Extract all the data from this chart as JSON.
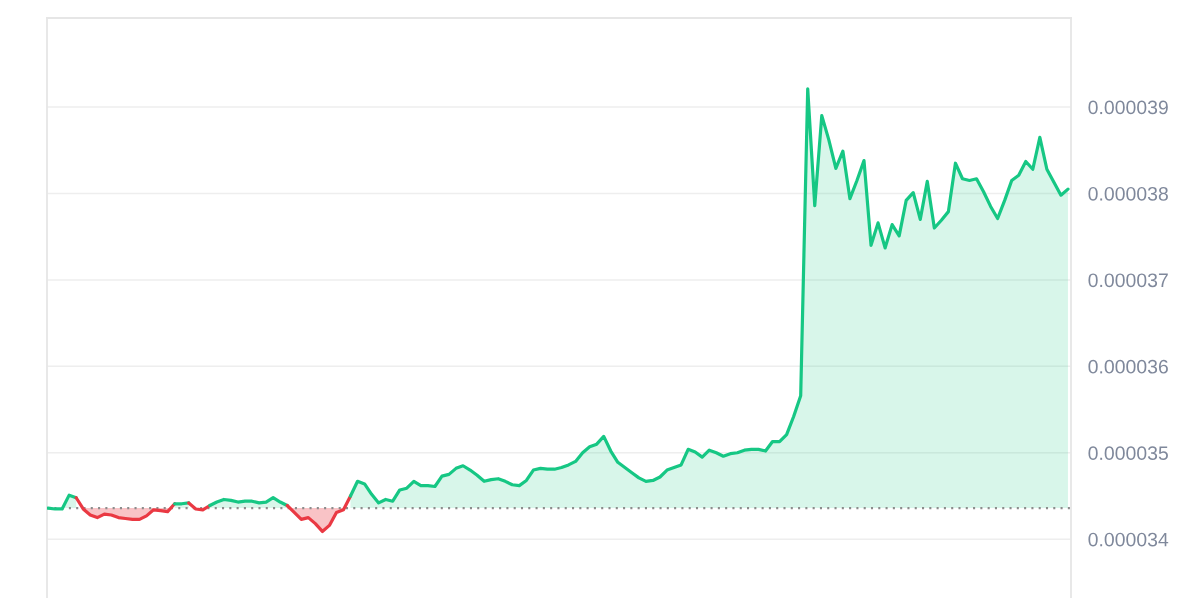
{
  "chart_data": {
    "type": "area",
    "categories": [
      null,
      null,
      null,
      null,
      null,
      null,
      null,
      null,
      null,
      null,
      null,
      null,
      null,
      null,
      null,
      null,
      null,
      null,
      null,
      null,
      null,
      null,
      null,
      null,
      null,
      null,
      null,
      null,
      null,
      null,
      null,
      null,
      null,
      null,
      null,
      null,
      null,
      null,
      null,
      null,
      null,
      null,
      null,
      null,
      null,
      null,
      null,
      null,
      null,
      null,
      null,
      null,
      null,
      null,
      null,
      null,
      null,
      null,
      null,
      null,
      null,
      null,
      null,
      null,
      null,
      null,
      null,
      null,
      null,
      null,
      null,
      null,
      null,
      null,
      null,
      null,
      null,
      null,
      null,
      null,
      null,
      null,
      null,
      null,
      null,
      null,
      null,
      null,
      null,
      null,
      null,
      null,
      null,
      null,
      null,
      null,
      null,
      null,
      null,
      null,
      null,
      null,
      null,
      null,
      null,
      null,
      null,
      null,
      null,
      null,
      null,
      null,
      null,
      null,
      null,
      null,
      null,
      null,
      null,
      null,
      null,
      null,
      null,
      null,
      null,
      null,
      null,
      null,
      null,
      null,
      null,
      null,
      null,
      null,
      null,
      null,
      null,
      null,
      null,
      null,
      null,
      null,
      null,
      null,
      null,
      null
    ],
    "series": [
      {
        "color": "#16c784",
        "values": [
          3.436e-05,
          3.435e-05,
          3.435e-05,
          3.451e-05,
          3.448e-05,
          null,
          null,
          null,
          null,
          null,
          null,
          null,
          null,
          null,
          null,
          null,
          null,
          null,
          null,
          null,
          null,
          null,
          null,
          null,
          null,
          null,
          null,
          null,
          null,
          null,
          null,
          null,
          null,
          null,
          null,
          null,
          null,
          null,
          null,
          null,
          null,
          null,
          null,
          null,
          null,
          null,
          null,
          null,
          null,
          null,
          null,
          null,
          null,
          null,
          null,
          null,
          null,
          null,
          null,
          null,
          null,
          null,
          null,
          null,
          null,
          null,
          null,
          null,
          null,
          null,
          null,
          null,
          null,
          null,
          null,
          null,
          null,
          null,
          null,
          null,
          null,
          null,
          null,
          null,
          null,
          null,
          null,
          null,
          null,
          null,
          null,
          null,
          null,
          null,
          null,
          null,
          null,
          null,
          null,
          null,
          null,
          null,
          null,
          null,
          null,
          null,
          null,
          null,
          null,
          null,
          null,
          null,
          null,
          null,
          null,
          null,
          null,
          null,
          null,
          null,
          null,
          null,
          null,
          null,
          null,
          null,
          null,
          null,
          null,
          null,
          null,
          null,
          null,
          null,
          null,
          null,
          null,
          null,
          null,
          null,
          null,
          null,
          null,
          null,
          null,
          null
        ]
      },
      {
        "type": "line",
        "color": "#ea3943",
        "values": [
          null,
          null,
          null,
          null,
          3.448e-05,
          3.435e-05,
          3.428e-05,
          3.425e-05,
          3.429e-05,
          3.428e-05,
          3.425e-05,
          3.424e-05,
          3.423e-05,
          3.423e-05,
          3.427e-05,
          3.434e-05,
          3.433e-05,
          3.432e-05,
          3.441e-05,
          null,
          null,
          null,
          null,
          null,
          null,
          null,
          null,
          null,
          null,
          null,
          null,
          null,
          null,
          null,
          null,
          null,
          null,
          null,
          null,
          null,
          null,
          null,
          null,
          null,
          null,
          null,
          null,
          null,
          null,
          null,
          null,
          null,
          null,
          null,
          null,
          null,
          null,
          null,
          null,
          null,
          null,
          null,
          null,
          null,
          null,
          null,
          null,
          null,
          null,
          null,
          null,
          null,
          null,
          null,
          null,
          null,
          null,
          null,
          null,
          null,
          null,
          null,
          null,
          null,
          null,
          null,
          null,
          null,
          null,
          null,
          null,
          null,
          null,
          null,
          null,
          null,
          null,
          null,
          null,
          null,
          null,
          null,
          null,
          null,
          null,
          null,
          null,
          null,
          null,
          null,
          null,
          null,
          null,
          null,
          null,
          null,
          null,
          null,
          null,
          null,
          null,
          null,
          null,
          null,
          null,
          null,
          null,
          null,
          null,
          null,
          null,
          null,
          null,
          null,
          null,
          null,
          null,
          null,
          null,
          null,
          null,
          null,
          null,
          null,
          null,
          null
        ]
      },
      {
        "color": "#16c784",
        "values": [
          null,
          null,
          null,
          null,
          null,
          null,
          null,
          null,
          null,
          null,
          null,
          null,
          null,
          null,
          null,
          null,
          null,
          null,
          3.441e-05,
          3.441e-05,
          3.442e-05,
          null,
          null,
          null,
          null,
          null,
          null,
          null,
          null,
          null,
          null,
          null,
          null,
          null,
          null,
          null,
          null,
          null,
          null,
          null,
          null,
          null,
          null,
          null,
          null,
          null,
          null,
          null,
          null,
          null,
          null,
          null,
          null,
          null,
          null,
          null,
          null,
          null,
          null,
          null,
          null,
          null,
          null,
          null,
          null,
          null,
          null,
          null,
          null,
          null,
          null,
          null,
          null,
          null,
          null,
          null,
          null,
          null,
          null,
          null,
          null,
          null,
          null,
          null,
          null,
          null,
          null,
          null,
          null,
          null,
          null,
          null,
          null,
          null,
          null,
          null,
          null,
          null,
          null,
          null,
          null,
          null,
          null,
          null,
          null,
          null,
          null,
          null,
          null,
          null,
          null,
          null,
          null,
          null,
          null,
          null,
          null,
          null,
          null,
          null,
          null,
          null,
          null,
          null,
          null,
          null,
          null,
          null,
          null,
          null,
          null,
          null,
          null,
          null,
          null,
          null,
          null,
          null,
          null,
          null,
          null,
          null,
          null,
          null,
          null,
          null
        ]
      },
      {
        "type": "line",
        "color": "#ea3943",
        "values": [
          null,
          null,
          null,
          null,
          null,
          null,
          null,
          null,
          null,
          null,
          null,
          null,
          null,
          null,
          null,
          null,
          null,
          null,
          null,
          null,
          3.442e-05,
          3.435e-05,
          3.434e-05,
          3.439e-05,
          null,
          null,
          null,
          null,
          null,
          null,
          null,
          null,
          null,
          null,
          null,
          null,
          null,
          null,
          null,
          null,
          null,
          null,
          null,
          null,
          null,
          null,
          null,
          null,
          null,
          null,
          null,
          null,
          null,
          null,
          null,
          null,
          null,
          null,
          null,
          null,
          null,
          null,
          null,
          null,
          null,
          null,
          null,
          null,
          null,
          null,
          null,
          null,
          null,
          null,
          null,
          null,
          null,
          null,
          null,
          null,
          null,
          null,
          null,
          null,
          null,
          null,
          null,
          null,
          null,
          null,
          null,
          null,
          null,
          null,
          null,
          null,
          null,
          null,
          null,
          null,
          null,
          null,
          null,
          null,
          null,
          null,
          null,
          null,
          null,
          null,
          null,
          null,
          null,
          null,
          null,
          null,
          null,
          null,
          null,
          null,
          null,
          null,
          null,
          null,
          null,
          null,
          null,
          null,
          null,
          null,
          null,
          null,
          null,
          null,
          null,
          null,
          null,
          null,
          null,
          null,
          null,
          null,
          null,
          null,
          null,
          null
        ]
      },
      {
        "color": "#16c784",
        "values": [
          null,
          null,
          null,
          null,
          null,
          null,
          null,
          null,
          null,
          null,
          null,
          null,
          null,
          null,
          null,
          null,
          null,
          null,
          null,
          null,
          null,
          null,
          null,
          3.439e-05,
          3.443e-05,
          3.446e-05,
          3.445e-05,
          3.443e-05,
          3.444e-05,
          3.444e-05,
          3.442e-05,
          3.443e-05,
          3.448e-05,
          3.443e-05,
          3.439e-05,
          null,
          null,
          null,
          null,
          null,
          null,
          null,
          null,
          null,
          null,
          null,
          null,
          null,
          null,
          null,
          null,
          null,
          null,
          null,
          null,
          null,
          null,
          null,
          null,
          null,
          null,
          null,
          null,
          null,
          null,
          null,
          null,
          null,
          null,
          null,
          null,
          null,
          null,
          null,
          null,
          null,
          null,
          null,
          null,
          null,
          null,
          null,
          null,
          null,
          null,
          null,
          null,
          null,
          null,
          null,
          null,
          null,
          null,
          null,
          null,
          null,
          null,
          null,
          null,
          null,
          null,
          null,
          null,
          null,
          null,
          null,
          null,
          null,
          null,
          null,
          null,
          null,
          null,
          null,
          null,
          null,
          null,
          null,
          null,
          null,
          null,
          null,
          null,
          null,
          null,
          null,
          null,
          null,
          null,
          null,
          null,
          null,
          null,
          null,
          null,
          null,
          null,
          null,
          null,
          null,
          null,
          null,
          null,
          null,
          null,
          null
        ]
      },
      {
        "type": "line",
        "color": "#ea3943",
        "values": [
          null,
          null,
          null,
          null,
          null,
          null,
          null,
          null,
          null,
          null,
          null,
          null,
          null,
          null,
          null,
          null,
          null,
          null,
          null,
          null,
          null,
          null,
          null,
          null,
          null,
          null,
          null,
          null,
          null,
          null,
          null,
          null,
          null,
          null,
          3.439e-05,
          3.431e-05,
          3.423e-05,
          3.425e-05,
          3.418e-05,
          3.409e-05,
          3.416e-05,
          3.431e-05,
          3.434e-05,
          3.45e-05,
          null,
          null,
          null,
          null,
          null,
          null,
          null,
          null,
          null,
          null,
          null,
          null,
          null,
          null,
          null,
          null,
          null,
          null,
          null,
          null,
          null,
          null,
          null,
          null,
          null,
          null,
          null,
          null,
          null,
          null,
          null,
          null,
          null,
          null,
          null,
          null,
          null,
          null,
          null,
          null,
          null,
          null,
          null,
          null,
          null,
          null,
          null,
          null,
          null,
          null,
          null,
          null,
          null,
          null,
          null,
          null,
          null,
          null,
          null,
          null,
          null,
          null,
          null,
          null,
          null,
          null,
          null,
          null,
          null,
          null,
          null,
          null,
          null,
          null,
          null,
          null,
          null,
          null,
          null,
          null,
          null,
          null,
          null,
          null,
          null,
          null,
          null,
          null,
          null,
          null,
          null,
          null,
          null,
          null,
          null,
          null,
          null,
          null,
          null,
          null,
          null,
          null
        ]
      },
      {
        "color": "#16c784",
        "values": [
          null,
          null,
          null,
          null,
          null,
          null,
          null,
          null,
          null,
          null,
          null,
          null,
          null,
          null,
          null,
          null,
          null,
          null,
          null,
          null,
          null,
          null,
          null,
          null,
          null,
          null,
          null,
          null,
          null,
          null,
          null,
          null,
          null,
          null,
          null,
          null,
          null,
          null,
          null,
          null,
          null,
          null,
          null,
          3.45e-05,
          3.467e-05,
          3.464e-05,
          3.452e-05,
          3.442e-05,
          3.446e-05,
          3.444e-05,
          3.457e-05,
          3.459e-05,
          3.467e-05,
          3.462e-05,
          3.462e-05,
          3.461e-05,
          3.473e-05,
          3.475e-05,
          3.482e-05,
          3.485e-05,
          3.48e-05,
          3.474e-05,
          3.467e-05,
          3.469e-05,
          3.47e-05,
          3.467e-05,
          3.463e-05,
          3.462e-05,
          3.468e-05,
          3.48e-05,
          3.482e-05,
          3.481e-05,
          3.481e-05,
          3.483e-05,
          3.486e-05,
          3.49e-05,
          3.5e-05,
          3.507e-05,
          3.51e-05,
          3.519e-05,
          3.502e-05,
          3.489e-05,
          3.483e-05,
          3.477e-05,
          3.471e-05,
          3.467e-05,
          3.468e-05,
          3.472e-05,
          3.48e-05,
          3.483e-05,
          3.486e-05,
          3.504e-05,
          3.501e-05,
          3.495e-05,
          3.503e-05,
          3.5e-05,
          3.496e-05,
          3.499e-05,
          3.5e-05,
          3.503e-05,
          3.504e-05,
          3.504e-05,
          3.502e-05,
          3.513e-05,
          3.513e-05,
          3.521e-05,
          3.542e-05,
          3.566e-05,
          3.921e-05,
          3.786e-05,
          3.89e-05,
          3.862e-05,
          3.829e-05,
          3.849e-05,
          3.794e-05,
          3.815e-05,
          3.838e-05,
          3.74e-05,
          3.766e-05,
          3.737e-05,
          3.764e-05,
          3.751e-05,
          3.792e-05,
          3.801e-05,
          3.77e-05,
          3.814e-05,
          3.76e-05,
          3.769e-05,
          3.779e-05,
          3.835e-05,
          3.817e-05,
          3.815e-05,
          3.817e-05,
          3.802e-05,
          3.785e-05,
          3.771e-05,
          3.792e-05,
          3.815e-05,
          3.821e-05,
          3.837e-05,
          3.828e-05,
          3.865e-05,
          3.828e-05,
          3.813e-05,
          3.798e-05,
          3.805e-05
        ]
      }
    ],
    "ylim": [
      3.332e-05,
      4.003e-05
    ],
    "yticks": [
      {
        "value": 3.4e-05,
        "label": "0.000034"
      },
      {
        "value": 3.5e-05,
        "label": "0.000035"
      },
      {
        "value": 3.6e-05,
        "label": "0.000036"
      },
      {
        "value": 3.7e-05,
        "label": "0.000037"
      },
      {
        "value": 3.8e-05,
        "label": "0.000038"
      },
      {
        "value": 3.9e-05,
        "label": "0.000039"
      }
    ],
    "grid": "y",
    "tick_labels": "y",
    "ref_lines": [
      {
        "axis": "y",
        "value": 3.436e-05,
        "color": "#8c8c8c",
        "line_style": "dotted"
      }
    ]
  }
}
